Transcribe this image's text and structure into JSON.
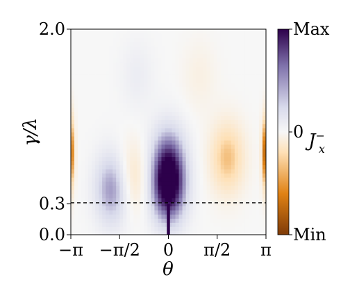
{
  "chart_data": {
    "type": "heatmap",
    "xlabel": "θ",
    "ylabel": "γ/λ",
    "x_range": [
      -3.14159,
      3.14159
    ],
    "y_range": [
      0.0,
      2.0
    ],
    "x_ticks": [
      {
        "value": -3.14159,
        "label": "−π"
      },
      {
        "value": -1.5708,
        "label": "−π/2"
      },
      {
        "value": 0,
        "label": "0"
      },
      {
        "value": 1.5708,
        "label": "π/2"
      },
      {
        "value": 3.14159,
        "label": "π"
      }
    ],
    "y_ticks": [
      {
        "value": 0.0,
        "label": "0.0"
      },
      {
        "value": 0.3,
        "label": "0.3"
      },
      {
        "value": 2.0,
        "label": "2.0"
      }
    ],
    "reference_line": {
      "axis": "y",
      "value": 0.3,
      "style": "dashed",
      "color": "#000000"
    },
    "colorbar": {
      "label": "J",
      "label_sub": "x",
      "label_sup": "−",
      "ticks": [
        {
          "value": 1,
          "label": "Max"
        },
        {
          "value": 0,
          "label": "0"
        },
        {
          "value": -1,
          "label": "Min"
        }
      ],
      "colormap": "PuOr",
      "colors": [
        "#7f3b08",
        "#e08214",
        "#fee0b6",
        "#f7f7f7",
        "#d8daeb",
        "#8073ac",
        "#2d004b"
      ]
    },
    "features": [
      {
        "theta": 0.0,
        "gamma": 0.45,
        "value": 1.0,
        "note": "dark purple spike at θ=0, low γ"
      },
      {
        "theta": 0.0,
        "gamma": 0.75,
        "value": 0.55
      },
      {
        "theta": -1.8,
        "gamma": 0.45,
        "value": 0.6
      },
      {
        "theta": -1.0,
        "gamma": 1.55,
        "value": 0.12
      },
      {
        "theta": 1.9,
        "gamma": 0.75,
        "value": -0.45
      },
      {
        "theta": 1.0,
        "gamma": 1.55,
        "value": -0.1
      },
      {
        "theta": -1.2,
        "gamma": 0.55,
        "value": -0.3
      },
      {
        "theta": -3.14,
        "gamma": 0.8,
        "value": -0.75
      },
      {
        "theta": 3.14,
        "gamma": 0.8,
        "value": -0.9
      }
    ]
  }
}
